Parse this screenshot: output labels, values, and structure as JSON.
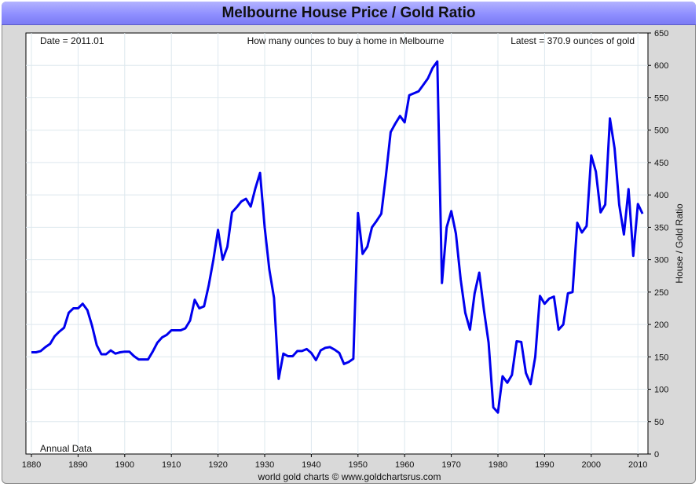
{
  "title": "Melbourne House Price / Gold Ratio",
  "footer": "world gold charts © www.goldchartsrus.com",
  "annotations": {
    "date": "Date = 2011.01",
    "subtitle": "How many ounces to buy a home in Melbourne",
    "latest": "Latest = 370.9 ounces of gold",
    "frequency": "Annual Data"
  },
  "colors": {
    "line": "#0000ee",
    "title_bar": "#9a9aff",
    "grid": "#dde8ee"
  },
  "chart_data": {
    "type": "line",
    "title": "Melbourne House Price / Gold Ratio",
    "ylabel": "House / Gold Ratio",
    "xlabel": "",
    "xlim": [
      1880,
      2011
    ],
    "ylim": [
      0,
      650
    ],
    "x_ticks": [
      1880,
      1890,
      1900,
      1910,
      1920,
      1930,
      1940,
      1950,
      1960,
      1970,
      1980,
      1990,
      2000,
      2010
    ],
    "y_ticks": [
      0,
      50,
      100,
      150,
      200,
      250,
      300,
      350,
      400,
      450,
      500,
      550,
      600,
      650
    ],
    "grid": true,
    "y_axis_side": "right",
    "series": [
      {
        "x": [
          1880,
          1881,
          1882,
          1883,
          1884,
          1885,
          1886,
          1887,
          1888,
          1889,
          1890,
          1891,
          1892,
          1893,
          1894,
          1895,
          1896,
          1897,
          1898,
          1899,
          1900,
          1901,
          1902,
          1903,
          1904,
          1905,
          1906,
          1907,
          1908,
          1909,
          1910,
          1911,
          1912,
          1913,
          1914,
          1915,
          1916,
          1917,
          1918,
          1919,
          1920,
          1921,
          1922,
          1923,
          1924,
          1925,
          1926,
          1927,
          1928,
          1929,
          1930,
          1931,
          1932,
          1933,
          1934,
          1935,
          1936,
          1937,
          1938,
          1939,
          1940,
          1941,
          1942,
          1943,
          1944,
          1945,
          1946,
          1947,
          1948,
          1949,
          1950,
          1951,
          1952,
          1953,
          1954,
          1955,
          1956,
          1957,
          1958,
          1959,
          1960,
          1961,
          1962,
          1963,
          1964,
          1965,
          1966,
          1967,
          1968,
          1969,
          1970,
          1971,
          1972,
          1973,
          1974,
          1975,
          1976,
          1977,
          1978,
          1979,
          1980,
          1981,
          1982,
          1983,
          1984,
          1985,
          1986,
          1987,
          1988,
          1989,
          1990,
          1991,
          1992,
          1993,
          1994,
          1995,
          1996,
          1997,
          1998,
          1999,
          2000,
          2001,
          2002,
          2003,
          2004,
          2005,
          2006,
          2007,
          2008,
          2009,
          2010,
          2011
        ],
        "values": [
          157,
          157,
          159,
          165,
          170,
          182,
          189,
          195,
          218,
          225,
          225,
          232,
          222,
          198,
          168,
          154,
          154,
          160,
          155,
          157,
          158,
          158,
          151,
          146,
          146,
          146,
          158,
          172,
          180,
          184,
          191,
          191,
          191,
          194,
          206,
          238,
          225,
          228,
          260,
          300,
          346,
          300,
          320,
          373,
          381,
          390,
          394,
          382,
          410,
          434,
          350,
          285,
          241,
          116,
          155,
          151,
          151,
          159,
          159,
          162,
          156,
          145,
          160,
          164,
          165,
          161,
          156,
          139,
          142,
          147,
          372,
          309,
          320,
          350,
          360,
          371,
          430,
          497,
          510,
          522,
          512,
          554,
          557,
          560,
          570,
          580,
          596,
          606,
          264,
          350,
          375,
          340,
          270,
          218,
          192,
          248,
          280,
          222,
          172,
          72,
          64,
          120,
          110,
          122,
          174,
          173,
          125,
          108,
          150,
          244,
          232,
          240,
          243,
          192,
          200,
          248,
          250,
          357,
          342,
          352,
          461,
          436,
          373,
          385,
          518,
          472,
          385,
          339,
          409,
          306,
          386,
          371
        ]
      }
    ]
  }
}
